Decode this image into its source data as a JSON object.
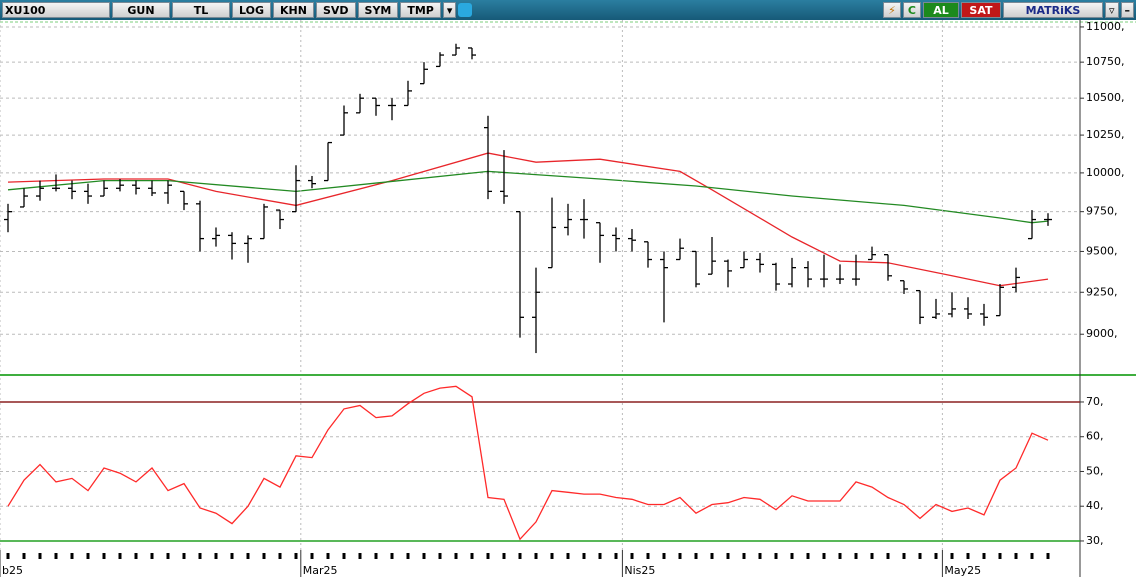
{
  "toolbar": {
    "symbol": "XU100",
    "buttons": [
      "GUN",
      "TL",
      "LOG",
      "KHN",
      "SVD",
      "SYM",
      "TMP"
    ],
    "buy": "AL",
    "sell": "SAT",
    "brand": "MATRiKS"
  },
  "chart_data": [
    {
      "type": "ohlc",
      "log_scale": true,
      "grid": true,
      "color": "#000000",
      "open": [
        9700,
        9780,
        9850,
        9900,
        9900,
        9880,
        9850,
        9900,
        9920,
        9900,
        9870,
        9880,
        9800,
        9580,
        9600,
        9550,
        9580,
        9760,
        9750,
        9950,
        9950,
        10250,
        10400,
        10500,
        10450,
        10450,
        10600,
        10720,
        10800,
        10850,
        10300,
        9880,
        9750,
        9100,
        9400,
        9650,
        9700,
        9680,
        9600,
        9580,
        9560,
        9450,
        9450,
        9500,
        9360,
        9440,
        9400,
        9450,
        9420,
        9300,
        9400,
        9330,
        9330,
        9330,
        9450,
        9480,
        9320,
        9260,
        9100,
        9120,
        9150,
        9120,
        9110,
        9280,
        9580,
        9700
      ],
      "high": [
        9800,
        9900,
        9950,
        9990,
        9950,
        9930,
        9950,
        9960,
        9950,
        9950,
        9950,
        9880,
        9820,
        9650,
        9620,
        9600,
        9800,
        9760,
        10050,
        9980,
        10200,
        10450,
        10530,
        10500,
        10500,
        10620,
        10750,
        10820,
        10880,
        10850,
        10380,
        10150,
        9750,
        9400,
        9840,
        9800,
        9830,
        9680,
        9650,
        9640,
        9560,
        9500,
        9580,
        9500,
        9590,
        9450,
        9500,
        9490,
        9430,
        9460,
        9440,
        9480,
        9420,
        9480,
        9530,
        9480,
        9320,
        9260,
        9210,
        9250,
        9220,
        9180,
        9300,
        9400,
        9760,
        9740
      ],
      "low": [
        9620,
        9780,
        9820,
        9880,
        9830,
        9800,
        9850,
        9880,
        9860,
        9850,
        9800,
        9760,
        9500,
        9530,
        9450,
        9430,
        9580,
        9640,
        9750,
        9900,
        9950,
        10250,
        10400,
        10380,
        10350,
        10450,
        10600,
        10720,
        10800,
        10770,
        9830,
        9800,
        8980,
        8890,
        9400,
        9600,
        9580,
        9430,
        9500,
        9500,
        9400,
        9070,
        9450,
        9280,
        9360,
        9280,
        9400,
        9370,
        9260,
        9280,
        9280,
        9280,
        9300,
        9290,
        9450,
        9320,
        9240,
        9060,
        9090,
        9100,
        9090,
        9050,
        9110,
        9250,
        9580,
        9660
      ],
      "close": [
        9750,
        9850,
        9900,
        9900,
        9880,
        9850,
        9900,
        9920,
        9900,
        9870,
        9920,
        9800,
        9580,
        9600,
        9550,
        9580,
        9780,
        9700,
        9950,
        9930,
        10200,
        10400,
        10500,
        10450,
        10450,
        10550,
        10700,
        10800,
        10850,
        10800,
        9880,
        9850,
        9100,
        9250,
        9650,
        9700,
        9700,
        9600,
        9580,
        9570,
        9450,
        9400,
        9520,
        9300,
        9440,
        9380,
        9450,
        9420,
        9300,
        9400,
        9330,
        9330,
        9330,
        9330,
        9480,
        9350,
        9270,
        9100,
        9120,
        9150,
        9120,
        9100,
        9280,
        9340,
        9700,
        9700
      ],
      "series": [
        {
          "color": "#e8262b",
          "x": [
            0,
            6,
            10,
            13,
            18,
            24,
            30,
            33,
            37,
            42,
            44,
            49,
            52,
            55,
            59,
            62,
            65
          ],
          "values": [
            9940,
            9960,
            9960,
            9880,
            9790,
            9950,
            10130,
            10070,
            10090,
            10010,
            9890,
            9590,
            9440,
            9430,
            9350,
            9290,
            9330
          ]
        },
        {
          "color": "#238a23",
          "x": [
            0,
            6,
            10,
            18,
            30,
            37,
            43,
            49,
            56,
            62,
            64,
            65
          ],
          "values": [
            9890,
            9950,
            9950,
            9880,
            10010,
            9960,
            9915,
            9850,
            9790,
            9710,
            9680,
            9690
          ]
        }
      ],
      "xlim": [
        -0.5,
        67
      ],
      "ylim": [
        8775,
        11050
      ],
      "yticks": [
        {
          "value": 11000,
          "label": "11000,"
        },
        {
          "value": 10750,
          "label": "10750,"
        },
        {
          "value": 10500,
          "label": "10500,"
        },
        {
          "value": 10250,
          "label": "10250,"
        },
        {
          "value": 10000,
          "label": "10000,"
        },
        {
          "value": 9750,
          "label": "9750,"
        },
        {
          "value": 9500,
          "label": "9500,"
        },
        {
          "value": 9250,
          "label": "9250,"
        },
        {
          "value": 9000,
          "label": "9000,"
        }
      ]
    },
    {
      "type": "line",
      "grid": true,
      "series": [
        {
          "color": "#ff2a2a",
          "values": [
            40,
            47.5,
            52,
            47,
            48,
            44.5,
            51,
            49.5,
            47,
            51,
            44.5,
            46.5,
            39.5,
            38,
            35,
            40,
            48,
            45.5,
            54.5,
            54,
            62,
            68,
            69,
            65.5,
            66,
            69.5,
            72.5,
            74,
            74.5,
            71.5,
            42.5,
            42,
            30.5,
            35.5,
            44.5,
            44,
            43.5,
            43.5,
            42.5,
            42,
            40.5,
            40.5,
            42.5,
            38,
            40.5,
            41,
            42.5,
            42,
            39,
            43,
            41.5,
            41.5,
            41.5,
            47,
            45.5,
            42.5,
            40.5,
            36.5,
            40.5,
            38.5,
            39.5,
            37.5,
            47.5,
            51,
            61,
            59
          ]
        }
      ],
      "levels": [
        {
          "value": 70,
          "color": "#8b2020"
        },
        {
          "value": 30,
          "color": "#22a022"
        }
      ],
      "xlim": [
        -0.5,
        67
      ],
      "ylim": [
        27.4,
        76.9
      ],
      "yticks": [
        {
          "value": 70,
          "label": "70,"
        },
        {
          "value": 60,
          "label": "60,"
        },
        {
          "value": 50,
          "label": "50,"
        },
        {
          "value": 40,
          "label": "40,"
        },
        {
          "value": 30,
          "label": "30,"
        }
      ],
      "xticks": [
        {
          "value": -0.5,
          "label": "b25"
        },
        {
          "value": 18.3,
          "label": "Mar25"
        },
        {
          "value": 38.4,
          "label": "Nis25"
        },
        {
          "value": 58.4,
          "label": "May25"
        }
      ]
    }
  ]
}
